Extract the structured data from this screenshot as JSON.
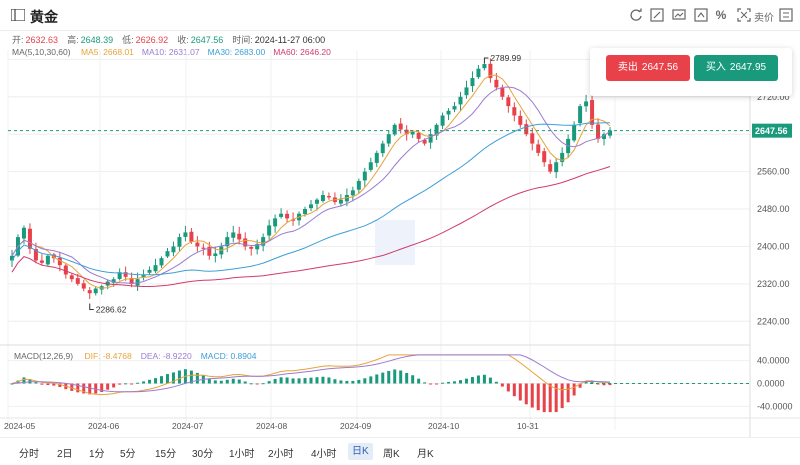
{
  "header": {
    "title": "黄金",
    "compare_label": "卖价"
  },
  "toolbar_icons": [
    "refresh-icon",
    "draw-icon",
    "screenshot-icon",
    "percent-icon",
    "fullscreen-icon"
  ],
  "ohlc": [
    {
      "label": "开:",
      "value": "2632.63",
      "color": "#e9414a"
    },
    {
      "label": "高:",
      "value": "2648.39",
      "color": "#1a9a7d"
    },
    {
      "label": "低:",
      "value": "2626.92",
      "color": "#e9414a"
    },
    {
      "label": "收:",
      "value": "2647.56",
      "color": "#1a9a7d"
    },
    {
      "label": "时间:",
      "value": "2024-11-27 06:00",
      "color": "#333333"
    }
  ],
  "ma": {
    "label": "MA(5,10,30,60)",
    "items": [
      {
        "text": "MA5: 2668.01",
        "color": "#e8a23a"
      },
      {
        "text": "MA10: 2631.07",
        "color": "#9b7bd1"
      },
      {
        "text": "MA30: 2683.00",
        "color": "#3b9fd8"
      },
      {
        "text": "MA60: 2646.20",
        "color": "#d13b6b"
      }
    ]
  },
  "macd": {
    "label": "MACD(12,26,9)",
    "items": [
      {
        "text": "DIF: -8.4768",
        "color": "#e8a23a"
      },
      {
        "text": "DEA: -8.9220",
        "color": "#9b7bd1"
      },
      {
        "text": "MACD: 0.8904",
        "color": "#3b9fd8"
      }
    ]
  },
  "trade": {
    "sell_label": "卖出",
    "sell_price": "2647.56",
    "buy_label": "买入",
    "buy_price": "2647.95"
  },
  "price_axis": [
    "2800.00",
    "2720.00",
    "2640.00",
    "2560.00",
    "2480.00",
    "2400.00",
    "2320.00",
    "2240.00"
  ],
  "price_marker": "2647.56",
  "macd_axis": [
    "40.0000",
    "0.0000",
    "-40.0000"
  ],
  "date_axis": [
    "2024-05",
    "2024-06",
    "2024-07",
    "2024-08",
    "2024-09",
    "2024-10",
    "10-31"
  ],
  "annotations": {
    "high": "2789.99",
    "low": "2286.62"
  },
  "timeframes": [
    "分时",
    "2日",
    "1分",
    "5分",
    "15分",
    "30分",
    "1小时",
    "2小时",
    "4小时",
    "日K",
    "周K",
    "月K"
  ],
  "active_timeframe": "日K",
  "colors": {
    "up": "#1a9a7d",
    "down": "#e9414a",
    "ma5": "#e8a23a",
    "ma10": "#9b7bd1",
    "ma30": "#3b9fd8",
    "ma60": "#d13b6b"
  },
  "chart_data": {
    "type": "candlestick",
    "ylim": [
      2200,
      2820
    ],
    "macd_ylim": [
      -55,
      55
    ],
    "x_labels": [
      "2024-05",
      "2024-06",
      "2024-07",
      "2024-08",
      "2024-09",
      "2024-10",
      "10-31"
    ],
    "close_path": [
      2380,
      2420,
      2440,
      2395,
      2370,
      2365,
      2380,
      2375,
      2360,
      2340,
      2330,
      2320,
      2310,
      2300,
      2310,
      2315,
      2325,
      2330,
      2345,
      2335,
      2320,
      2330,
      2340,
      2350,
      2360,
      2375,
      2390,
      2400,
      2420,
      2430,
      2410,
      2400,
      2395,
      2380,
      2385,
      2400,
      2420,
      2430,
      2415,
      2400,
      2395,
      2405,
      2420,
      2445,
      2460,
      2470,
      2460,
      2455,
      2470,
      2480,
      2490,
      2500,
      2510,
      2505,
      2495,
      2500,
      2510,
      2520,
      2540,
      2560,
      2580,
      2600,
      2620,
      2640,
      2660,
      2650,
      2640,
      2645,
      2630,
      2620,
      2640,
      2660,
      2680,
      2690,
      2700,
      2720,
      2740,
      2760,
      2780,
      2790,
      2760,
      2740,
      2720,
      2700,
      2680,
      2660,
      2640,
      2620,
      2600,
      2580,
      2560,
      2580,
      2600,
      2630,
      2660,
      2700,
      2710,
      2660,
      2630,
      2640,
      2648
    ]
  }
}
